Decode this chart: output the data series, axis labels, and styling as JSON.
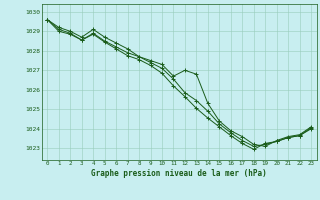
{
  "xlabel": "Graphe pression niveau de la mer (hPa)",
  "bg_color": "#c8eef0",
  "grid_color": "#99ccbb",
  "line_color": "#1a5c1a",
  "text_color": "#1a5c1a",
  "xlim": [
    -0.5,
    23.5
  ],
  "ylim": [
    1022.4,
    1030.4
  ],
  "yticks": [
    1023,
    1024,
    1025,
    1026,
    1027,
    1028,
    1029,
    1030
  ],
  "xticks": [
    0,
    1,
    2,
    3,
    4,
    5,
    6,
    7,
    8,
    9,
    10,
    11,
    12,
    13,
    14,
    15,
    16,
    17,
    18,
    19,
    20,
    21,
    22,
    23
  ],
  "series1": [
    1029.6,
    1029.2,
    1029.0,
    1028.7,
    1029.1,
    1028.7,
    1028.4,
    1028.1,
    1027.7,
    1027.5,
    1027.3,
    1026.7,
    1027.0,
    1026.8,
    1025.3,
    1024.4,
    1023.9,
    1023.6,
    1023.2,
    1023.1,
    1023.4,
    1023.6,
    1023.7,
    1024.1
  ],
  "series2": [
    1029.6,
    1029.0,
    1028.85,
    1028.55,
    1028.85,
    1028.45,
    1028.1,
    1027.75,
    1027.55,
    1027.25,
    1026.85,
    1026.2,
    1025.65,
    1025.05,
    1024.55,
    1024.1,
    1023.65,
    1023.25,
    1022.95,
    1023.25,
    1023.35,
    1023.55,
    1023.65,
    1024.0
  ],
  "series3": [
    1029.6,
    1029.1,
    1028.9,
    1028.55,
    1028.9,
    1028.5,
    1028.2,
    1027.9,
    1027.7,
    1027.4,
    1027.1,
    1026.55,
    1025.85,
    1025.45,
    1024.9,
    1024.25,
    1023.8,
    1023.4,
    1023.1,
    1023.2,
    1023.35,
    1023.55,
    1023.65,
    1024.05
  ]
}
